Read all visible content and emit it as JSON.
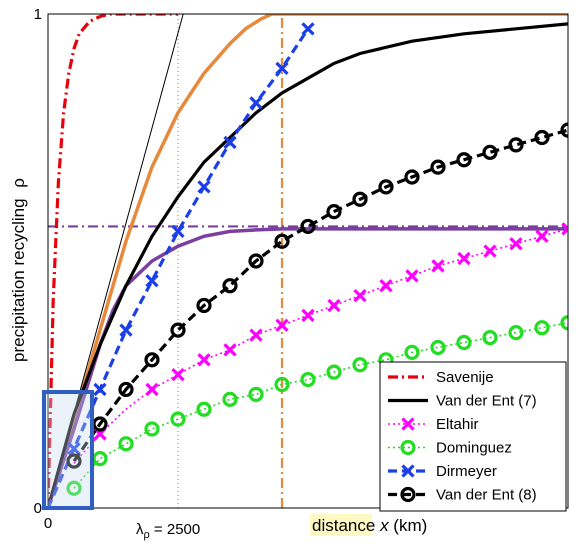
{
  "chart_data": {
    "type": "line",
    "title": "",
    "xlabel": "distance",
    "xlabel_var": "x",
    "xlabel_unit": "(km)",
    "ylabel": "precipitation recycling",
    "ylabel_symbol": "ρ",
    "xlim": [
      0,
      10000
    ],
    "ylim": [
      0,
      1
    ],
    "x_ticks": [
      {
        "value": 0,
        "label": "0"
      }
    ],
    "y_ticks": [
      {
        "value": 0,
        "label": "0"
      },
      {
        "value": 1,
        "label": "1"
      }
    ],
    "annotation": {
      "symbol": "λ",
      "subscript": "ρ",
      "text": " = 2500",
      "x": 2500
    },
    "grid": false,
    "legend_position": "bottom-right",
    "reference_lines": [
      {
        "kind": "vertical",
        "x": 2500,
        "style": "dotted",
        "color": "#888888"
      },
      {
        "kind": "vertical",
        "x": 4500,
        "style": "dash-dot",
        "color": "#e8883a"
      },
      {
        "kind": "horizontal",
        "y": 0.57,
        "style": "dash-dot",
        "color": "#7b3fa0"
      }
    ],
    "series": [
      {
        "name": "Savenije",
        "color": "#e8000b",
        "style": "dash-dot",
        "marker": "none",
        "x": [
          0,
          100,
          200,
          300,
          400,
          500,
          600,
          800,
          1000,
          1200,
          1500,
          2000,
          2500
        ],
        "y": [
          0,
          0.42,
          0.66,
          0.8,
          0.88,
          0.93,
          0.96,
          0.985,
          0.995,
          1.0,
          1.0,
          1.0,
          1.0
        ]
      },
      {
        "name": "Van der Ent (7)",
        "color": "#000000",
        "style": "solid",
        "marker": "none",
        "x": [
          0,
          500,
          1000,
          1500,
          2000,
          2500,
          3000,
          3500,
          4000,
          4500,
          5000,
          5500,
          6000,
          7000,
          8000,
          9000,
          10000
        ],
        "y": [
          0,
          0.19,
          0.33,
          0.45,
          0.55,
          0.63,
          0.7,
          0.75,
          0.8,
          0.84,
          0.87,
          0.9,
          0.92,
          0.945,
          0.96,
          0.97,
          0.98
        ]
      },
      {
        "name": "Eltahir",
        "color": "#ff00ff",
        "style": "dotted",
        "marker": "x",
        "x": [
          500,
          1000,
          1500,
          2000,
          2500,
          3000,
          3500,
          4000,
          4500,
          5000,
          5500,
          6000,
          6500,
          7000,
          7500,
          8000,
          8500,
          9000,
          9500,
          10000
        ],
        "y": [
          0.09,
          0.15,
          0.2,
          0.24,
          0.27,
          0.3,
          0.32,
          0.35,
          0.37,
          0.39,
          0.41,
          0.43,
          0.45,
          0.47,
          0.49,
          0.505,
          0.52,
          0.535,
          0.55,
          0.565
        ],
        "marker_x": [
          1000,
          2000,
          2500,
          3000,
          3500,
          4000,
          4500,
          5000,
          5500,
          6000,
          6500,
          7000,
          7500,
          8000,
          8500,
          9000,
          9500,
          10000
        ]
      },
      {
        "name": "Dominguez",
        "color": "#22dd22",
        "style": "dotted",
        "marker": "o",
        "x": [
          500,
          1000,
          1500,
          2000,
          2500,
          3000,
          3500,
          4000,
          4500,
          5000,
          5500,
          6000,
          6500,
          7000,
          7500,
          8000,
          8500,
          9000,
          9500,
          10000
        ],
        "y": [
          0.04,
          0.1,
          0.13,
          0.16,
          0.18,
          0.2,
          0.22,
          0.23,
          0.25,
          0.26,
          0.275,
          0.29,
          0.3,
          0.315,
          0.325,
          0.335,
          0.345,
          0.355,
          0.365,
          0.375
        ],
        "marker_x": [
          500,
          1000,
          1500,
          2000,
          2500,
          3000,
          3500,
          4000,
          4500,
          5000,
          5500,
          6000,
          6500,
          7000,
          7500,
          8000,
          8500,
          9000,
          9500,
          10000
        ]
      },
      {
        "name": "Dirmeyer",
        "color": "#1a3ee8",
        "style": "dashed",
        "marker": "x",
        "x": [
          0,
          500,
          1000,
          1500,
          2000,
          2500,
          3000,
          3500,
          4000,
          4500,
          5000
        ],
        "y": [
          0,
          0.12,
          0.24,
          0.36,
          0.46,
          0.56,
          0.65,
          0.74,
          0.82,
          0.89,
          0.97
        ],
        "marker_x": [
          500,
          1000,
          1500,
          2000,
          2500,
          3000,
          3500,
          4000,
          4500,
          5000
        ]
      },
      {
        "name": "Van der Ent (8)",
        "color": "#000000",
        "style": "dashed",
        "marker": "o",
        "x": [
          500,
          1000,
          1500,
          2000,
          2500,
          3000,
          3500,
          4000,
          4500,
          5000,
          5500,
          6000,
          6500,
          7000,
          7500,
          8000,
          8500,
          9000,
          9500,
          10000
        ],
        "y": [
          0.095,
          0.17,
          0.24,
          0.3,
          0.36,
          0.41,
          0.45,
          0.5,
          0.54,
          0.57,
          0.6,
          0.625,
          0.65,
          0.67,
          0.69,
          0.705,
          0.72,
          0.735,
          0.75,
          0.765
        ],
        "marker_x": [
          500,
          1000,
          1500,
          2000,
          2500,
          3000,
          3500,
          4000,
          4500,
          5000,
          5500,
          6000,
          6500,
          7000,
          7500,
          8000,
          8500,
          9000,
          9500,
          10000
        ]
      }
    ],
    "extra_curves": [
      {
        "color": "#e8883a",
        "style": "solid",
        "x": [
          0,
          500,
          1000,
          1500,
          2000,
          2500,
          3000,
          3500,
          3800,
          4100,
          4300,
          4500,
          6000,
          10000
        ],
        "y": [
          0,
          0.18,
          0.36,
          0.54,
          0.69,
          0.8,
          0.88,
          0.94,
          0.97,
          0.99,
          1.0,
          1.0,
          1.0,
          1.0
        ]
      },
      {
        "color": "#7b3fa0",
        "style": "solid",
        "x": [
          0,
          500,
          1000,
          1250,
          1500,
          2000,
          2500,
          3000,
          3500,
          4000,
          4500,
          6000,
          10000
        ],
        "y": [
          0,
          0.16,
          0.33,
          0.4,
          0.45,
          0.5,
          0.53,
          0.55,
          0.56,
          0.563,
          0.565,
          0.565,
          0.565
        ]
      },
      {
        "color": "#000000",
        "style": "thin",
        "x": [
          0,
          2600
        ],
        "y": [
          0,
          1.0
        ]
      }
    ]
  }
}
